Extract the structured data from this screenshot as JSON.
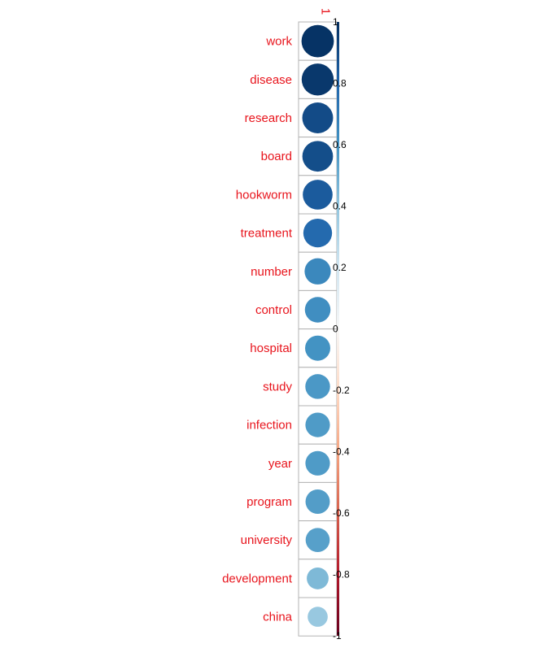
{
  "chart_data": {
    "type": "correlation-plot",
    "column_label": "1",
    "rows": [
      {
        "label": "work",
        "value": 0.99
      },
      {
        "label": "disease",
        "value": 0.97
      },
      {
        "label": "research",
        "value": 0.9
      },
      {
        "label": "board",
        "value": 0.89
      },
      {
        "label": "hookworm",
        "value": 0.84
      },
      {
        "label": "treatment",
        "value": 0.78
      },
      {
        "label": "number",
        "value": 0.65
      },
      {
        "label": "control",
        "value": 0.62
      },
      {
        "label": "hospital",
        "value": 0.6
      },
      {
        "label": "study",
        "value": 0.58
      },
      {
        "label": "infection",
        "value": 0.57
      },
      {
        "label": "year",
        "value": 0.57
      },
      {
        "label": "program",
        "value": 0.56
      },
      {
        "label": "university",
        "value": 0.55
      },
      {
        "label": "development",
        "value": 0.45
      },
      {
        "label": "china",
        "value": 0.38
      }
    ],
    "colorbar": {
      "range": [
        -1,
        1
      ],
      "ticks": [
        "1",
        "0.8",
        "0.6",
        "0.4",
        "0.2",
        "0",
        "-0.2",
        "-0.4",
        "-0.6",
        "-0.8",
        "-1"
      ]
    },
    "colors": {
      "label": "#e8141c",
      "grid": "#b3b3b3",
      "scale_neg": [
        "#67001f",
        "#b2182b",
        "#d6604d",
        "#f4a582",
        "#fddbc7"
      ],
      "scale_mid": "#f7f7f7",
      "scale_pos": [
        "#d1e5f0",
        "#92c5de",
        "#4393c3",
        "#2166ac",
        "#053061"
      ]
    }
  }
}
